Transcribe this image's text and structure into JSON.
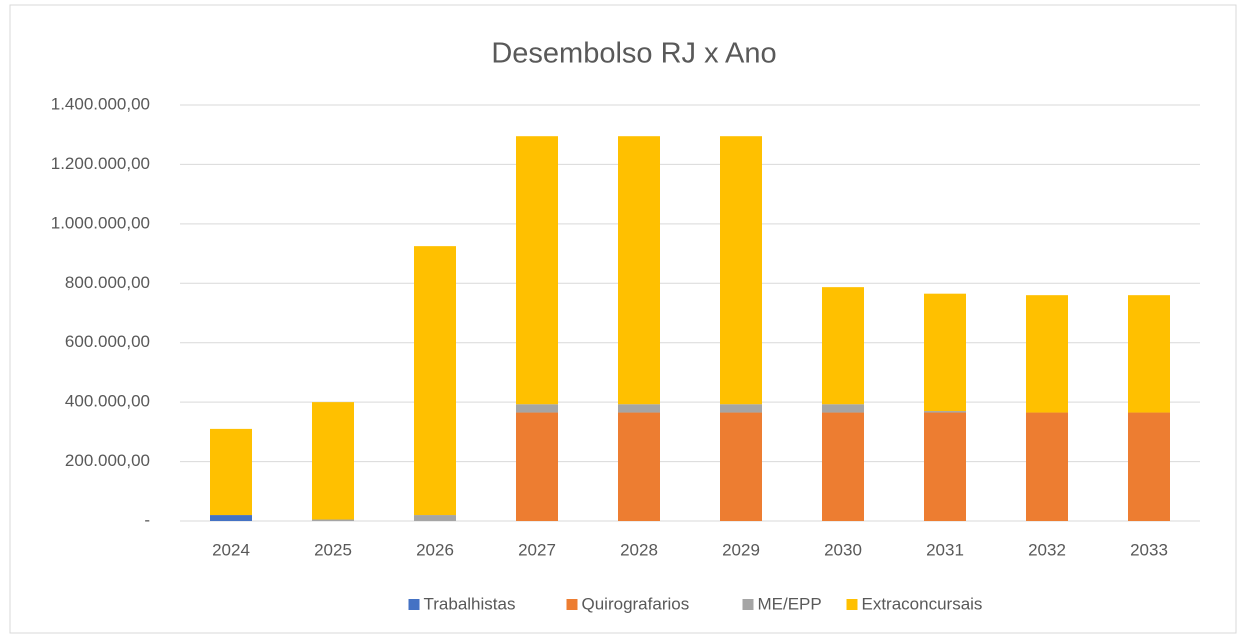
{
  "chart_data": {
    "type": "stacked_bar",
    "title": "Desembolso RJ x Ano",
    "categories": [
      "2024",
      "2025",
      "2026",
      "2027",
      "2028",
      "2029",
      "2030",
      "2031",
      "2032",
      "2033"
    ],
    "series": [
      {
        "name": "Trabalhistas",
        "color": "#4472c4",
        "values": [
          20000,
          0,
          0,
          0,
          0,
          0,
          0,
          0,
          0,
          0
        ]
      },
      {
        "name": "Quirografarios",
        "color": "#ed7d31",
        "values": [
          0,
          0,
          0,
          365000,
          365000,
          365000,
          365000,
          365000,
          365000,
          365000
        ]
      },
      {
        "name": "ME/EPP",
        "color": "#a5a5a5",
        "values": [
          0,
          5000,
          20000,
          28000,
          28000,
          28000,
          28000,
          5000,
          0,
          0
        ]
      },
      {
        "name": "Extraconcursais",
        "color": "#ffc000",
        "values": [
          290000,
          395000,
          905000,
          902000,
          902000,
          902000,
          394000,
          395000,
          395000,
          395000
        ]
      }
    ],
    "ylim": [
      0,
      1400000
    ],
    "yticks": [
      {
        "value": 0,
        "label": "-"
      },
      {
        "value": 200000,
        "label": "200.000,00"
      },
      {
        "value": 400000,
        "label": "400.000,00"
      },
      {
        "value": 600000,
        "label": "600.000,00"
      },
      {
        "value": 800000,
        "label": "800.000,00"
      },
      {
        "value": 1000000,
        "label": "1.000.000,00"
      },
      {
        "value": 1200000,
        "label": "1.200.000,00"
      },
      {
        "value": 1400000,
        "label": "1.400.000,00"
      }
    ],
    "grid": true,
    "legend": "bottom"
  }
}
